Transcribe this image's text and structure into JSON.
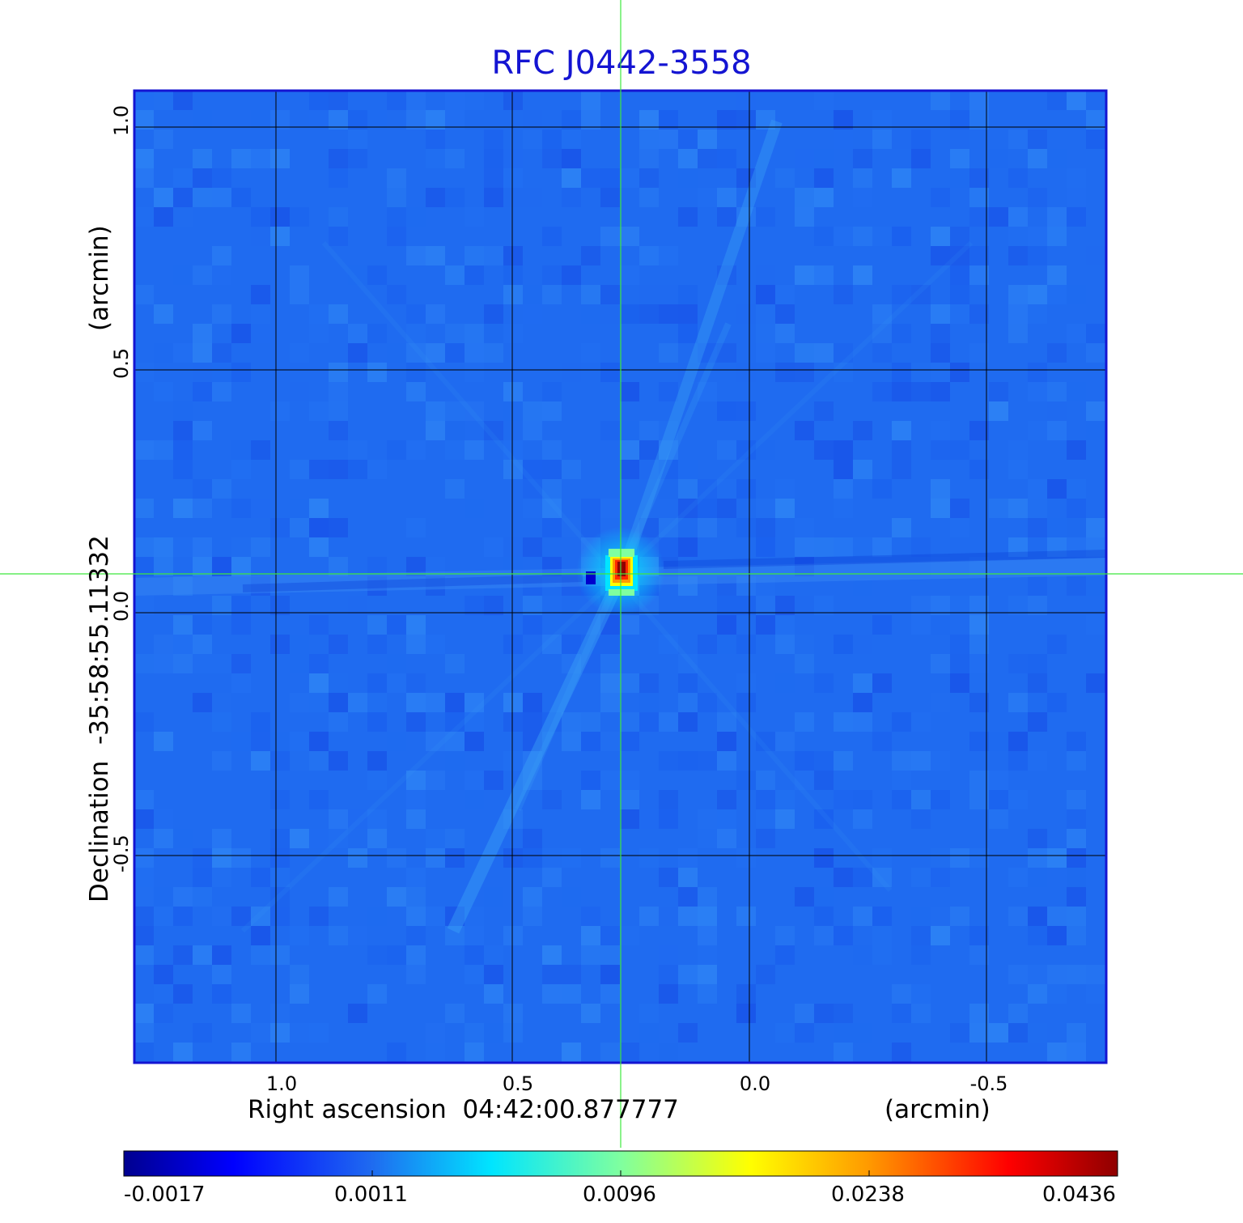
{
  "title": "RFC J0442-3558",
  "ra_label": "Right ascension  04:42:00.877777",
  "ra_unit": "(arcmin)",
  "dec_label": "Declination  -35:58:55.11332",
  "dec_unit": "(arcmin)",
  "x_ticks": [
    "1.0",
    "0.5",
    "0.0",
    "-0.5"
  ],
  "y_ticks": [
    "1.0",
    "0.5",
    "0.0",
    "-0.5"
  ],
  "colorbar_ticks": [
    "-0.0017",
    "0.0011",
    "0.0096",
    "0.0238",
    "0.0436"
  ],
  "colors": {
    "title": "#1414d2",
    "frame": "#1414d2",
    "crosshair": "#3ee83e",
    "background_noise": "#1f6bf0"
  },
  "colormap": "jet"
}
